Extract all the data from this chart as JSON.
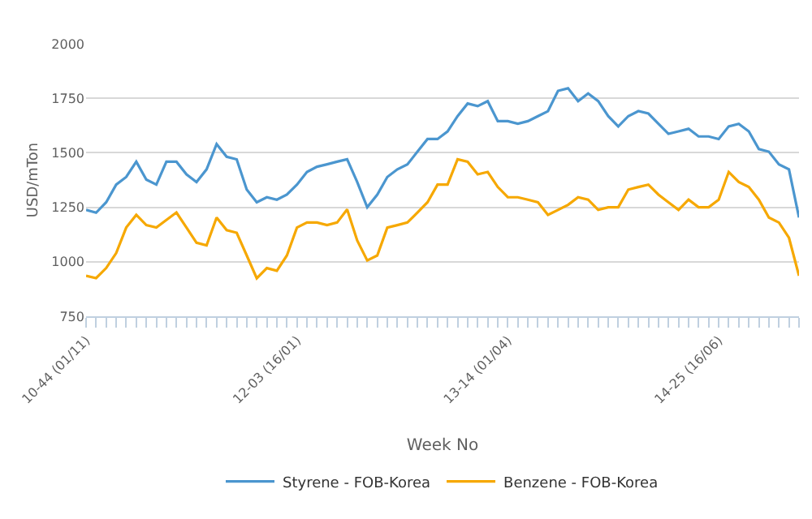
{
  "chart_data": {
    "type": "line",
    "xlabel": "Week No",
    "ylabel": "USD/mTon",
    "categories": [
      "10-44 (01/11)",
      null,
      null,
      null,
      null,
      null,
      null,
      null,
      null,
      null,
      null,
      null,
      null,
      null,
      null,
      null,
      null,
      null,
      null,
      null,
      null,
      "12-03 (16/01)",
      null,
      null,
      null,
      null,
      null,
      null,
      null,
      null,
      null,
      null,
      null,
      null,
      null,
      null,
      null,
      null,
      null,
      null,
      null,
      null,
      "13-14 (01/04)",
      null,
      null,
      null,
      null,
      null,
      null,
      null,
      null,
      null,
      null,
      null,
      null,
      null,
      null,
      null,
      null,
      null,
      null,
      null,
      null,
      "14-25 (16/06)",
      null,
      null,
      null,
      null,
      null,
      null,
      null,
      null
    ],
    "series": [
      {
        "name": "Styrene - FOB-Korea",
        "color": "#4b96cf",
        "values": [
          1238,
          1225,
          1273,
          1354,
          1389,
          1459,
          1377,
          1354,
          1459,
          1459,
          1401,
          1366,
          1424,
          1540,
          1482,
          1470,
          1331,
          1273,
          1296,
          1285,
          1308,
          1354,
          1412,
          1436,
          1447,
          1459,
          1470,
          1366,
          1250,
          1308,
          1389,
          1424,
          1447,
          1505,
          1563,
          1563,
          1598,
          1668,
          1726,
          1714,
          1737,
          1645,
          1645,
          1633,
          1645,
          1668,
          1691,
          1784,
          1796,
          1737,
          1772,
          1737,
          1668,
          1621,
          1668,
          1691,
          1680,
          1633,
          1587,
          1598,
          1610,
          1575,
          1575,
          1563,
          1621,
          1633,
          1598,
          1517,
          1505,
          1447,
          1424,
          1203
        ]
      },
      {
        "name": "Benzene - FOB-Korea",
        "color": "#f6a800",
        "values": [
          936,
          925,
          971,
          1040,
          1157,
          1215,
          1168,
          1157,
          1192,
          1226,
          1157,
          1087,
          1075,
          1203,
          1145,
          1133,
          1029,
          924,
          971,
          959,
          1029,
          1157,
          1180,
          1180,
          1168,
          1180,
          1240,
          1098,
          1006,
          1029,
          1157,
          1168,
          1180,
          1226,
          1273,
          1354,
          1354,
          1470,
          1459,
          1401,
          1412,
          1343,
          1296,
          1296,
          1285,
          1273,
          1215,
          1238,
          1261,
          1296,
          1285,
          1238,
          1250,
          1250,
          1331,
          1343,
          1354,
          1308,
          1273,
          1238,
          1285,
          1250,
          1250,
          1285,
          1412,
          1366,
          1343,
          1285,
          1203,
          1180,
          1110,
          936
        ]
      }
    ],
    "ylim": [
      750,
      2000
    ],
    "yticks": [
      750,
      1000,
      1250,
      1500,
      1750,
      2000
    ],
    "grid": "y",
    "legend": "bottom",
    "marker": "none",
    "line_style": "solid"
  }
}
